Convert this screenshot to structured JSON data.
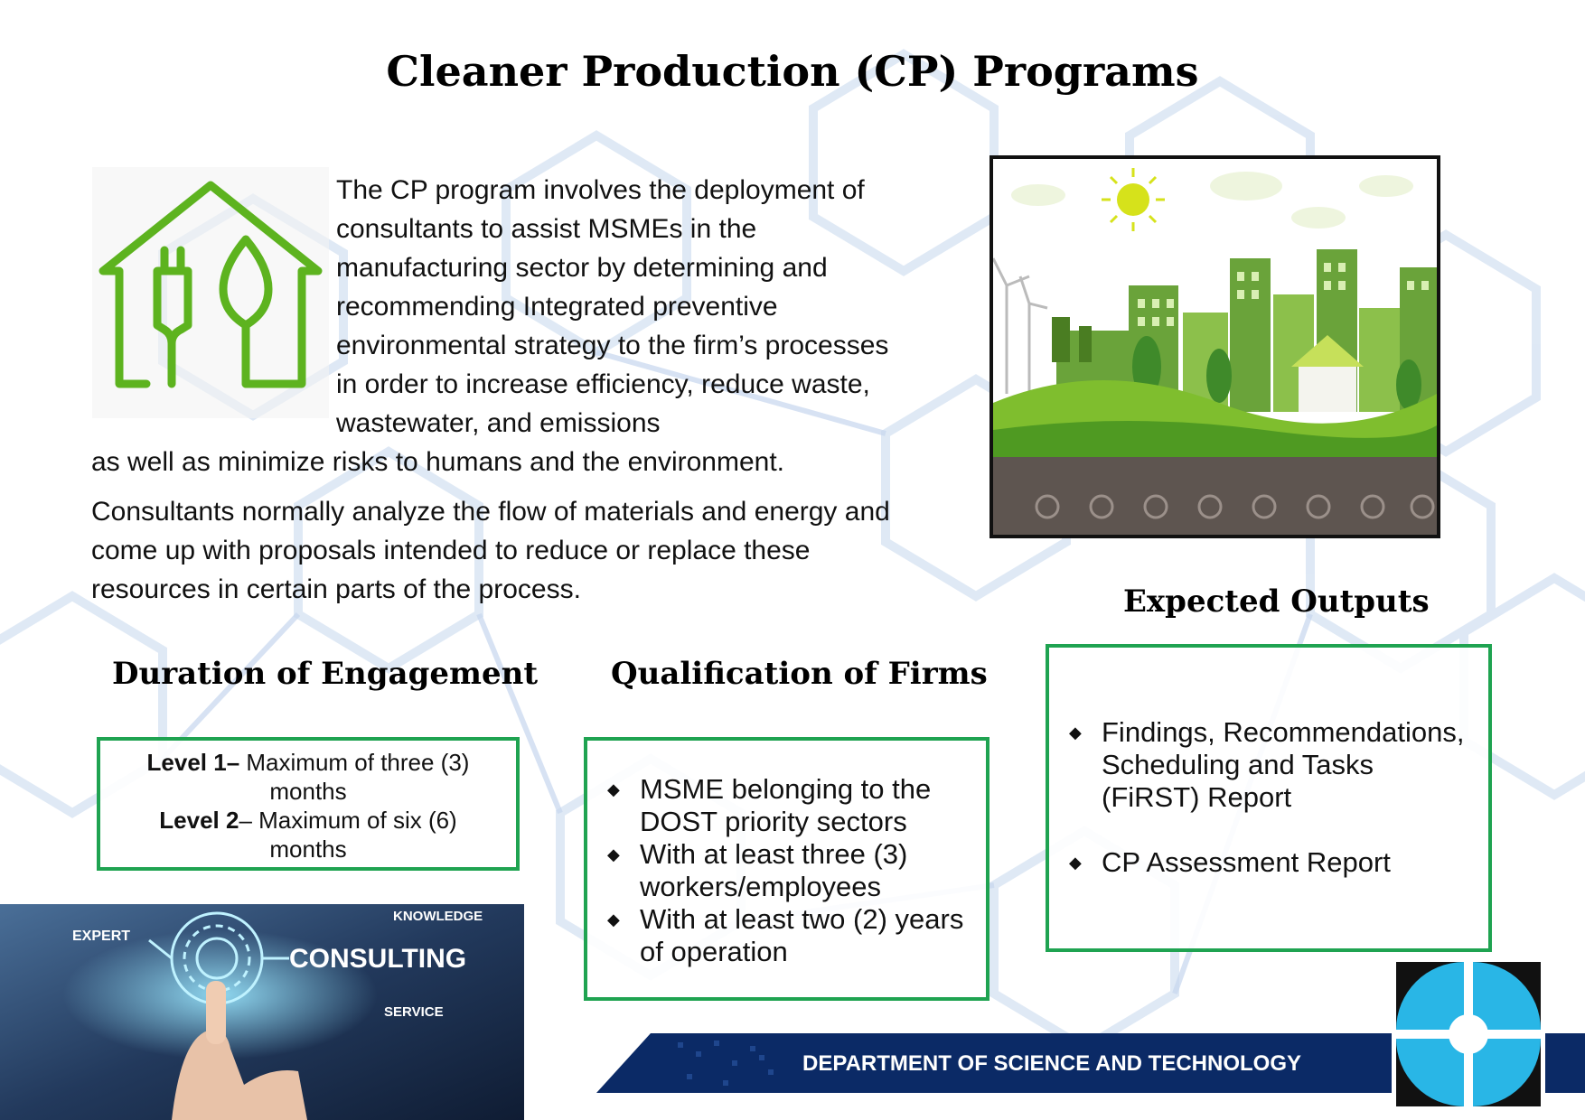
{
  "title": "Cleaner Production (CP) Programs",
  "intro": {
    "lines_wrapped": "The CP program involves the deployment of consultants to assist MSMEs in the manufacturing  sector by determining and recommending Integrated  preventive environmental strategy to the firm’s processes in order to increase efficiency, reduce waste, wastewater, and emissions",
    "line_full": "as well as minimize risks  to humans and the environment."
  },
  "paragraph2": "Consultants normally analyze the flow of materials and energy and come up with proposals intended to reduce or replace these resources in certain parts of the process.",
  "duration": {
    "heading": "Duration of Engagement",
    "level1_label": "Level 1–",
    "level1_text": " Maximum of three (3)",
    "level1_cont": "months",
    "level2_label": "Level 2",
    "level2_text": "– Maximum of six (6)",
    "level2_cont": "months"
  },
  "qualification": {
    "heading": "Qualification of Firms",
    "items": [
      "MSME belonging to the DOST priority  sectors",
      "With at least three (3) workers/employees",
      "With at least two (2) years of operation"
    ]
  },
  "outputs": {
    "heading": "Expected Outputs",
    "items": [
      "Findings, Recommendations, Scheduling and Tasks (FiRST) Report",
      "CP Assessment Report"
    ]
  },
  "consulting_image": {
    "word_main": "CONSULTING",
    "word_expert": "EXPERT",
    "word_knowledge": "KNOWLEDGE",
    "word_service": "SERVICE"
  },
  "footer": {
    "department": "DEPARTMENT OF SCIENCE AND TECHNOLOGY"
  },
  "colors": {
    "accent_green": "#1fa351",
    "icon_green": "#5db31f",
    "navy": "#0b2a66",
    "logo_cyan": "#29b6e6"
  },
  "icons": {
    "eco_house": "house-plug-leaf-icon",
    "bullet": "diamond-bullet-icon"
  }
}
